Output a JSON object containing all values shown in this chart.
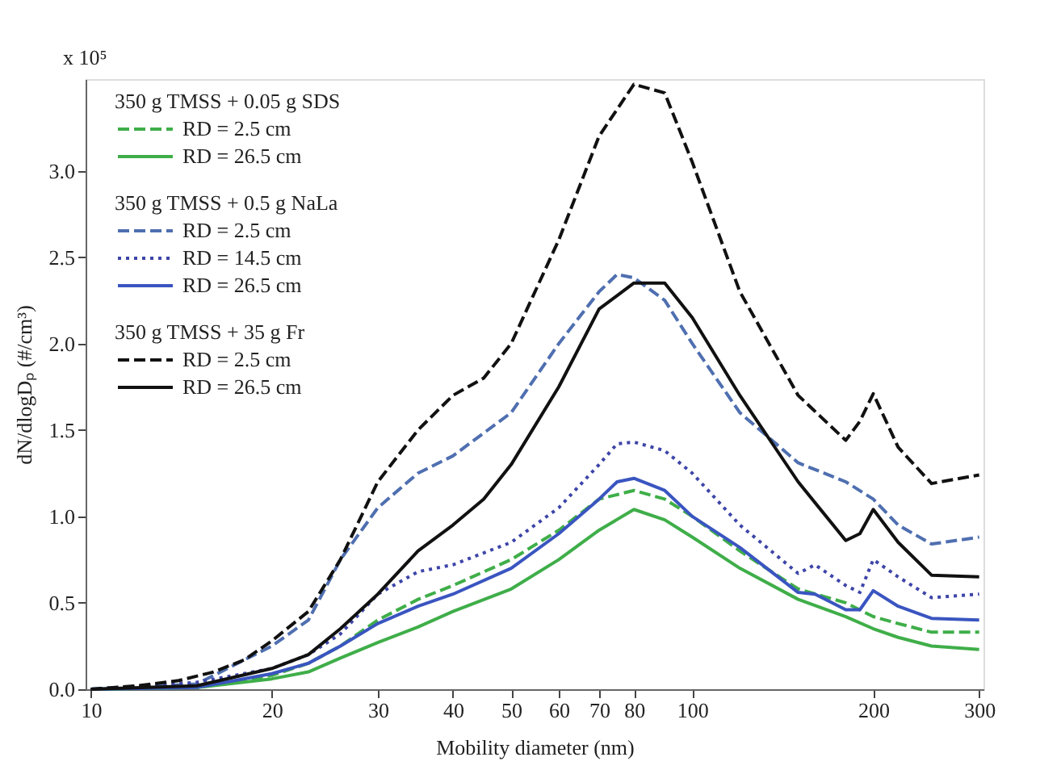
{
  "chart_data": {
    "type": "line",
    "xlabel": "Mobility diameter (nm)",
    "ylabel": "dN/dlogDₚ (#/cm³)",
    "annotations": [
      "x 10⁵",
      "350 g TMSS + 0.05 g SDS",
      "350 g TMSS + 0.5 g NaLa",
      "350 g TMSS + 35 g Fr"
    ],
    "log": "x",
    "grid": false,
    "legend": "top left",
    "marker": "none",
    "xlim": [
      9.8,
      305
    ],
    "ylim": [
      0,
      3.53
    ],
    "xticks": [
      10,
      20,
      30,
      40,
      50,
      60,
      70,
      80,
      100,
      200,
      300
    ],
    "yticks": [
      {
        "value": 0,
        "label": "0.0"
      },
      {
        "value": 0.5,
        "label": "0.5"
      },
      {
        "value": 1,
        "label": "1.0"
      },
      {
        "value": 1.5,
        "label": "1.5"
      },
      {
        "value": 2,
        "label": "2.0"
      },
      {
        "value": 2.5,
        "label": "2.5"
      },
      {
        "value": 3,
        "label": "3.0"
      }
    ],
    "series": [
      {
        "name": "RD = 2.5 cm",
        "color": "#3fae49",
        "line_style": "dashed",
        "x": [
          10,
          15,
          20,
          23,
          26,
          30,
          35,
          40,
          50,
          60,
          70,
          80,
          90,
          100,
          120,
          150,
          180,
          200,
          220,
          250,
          300
        ],
        "values": [
          0,
          0.01,
          0.08,
          0.15,
          0.25,
          0.4,
          0.52,
          0.6,
          0.75,
          0.92,
          1.1,
          1.15,
          1.1,
          1.0,
          0.8,
          0.58,
          0.5,
          0.42,
          0.38,
          0.33,
          0.33
        ]
      },
      {
        "name": "RD = 26.5 cm",
        "color": "#3fae49",
        "line_style": "solid",
        "x": [
          10,
          15,
          20,
          23,
          26,
          30,
          35,
          40,
          50,
          60,
          70,
          80,
          90,
          100,
          120,
          150,
          180,
          200,
          220,
          250,
          300
        ],
        "values": [
          0,
          0.01,
          0.06,
          0.1,
          0.18,
          0.27,
          0.36,
          0.45,
          0.58,
          0.75,
          0.92,
          1.04,
          0.98,
          0.88,
          0.7,
          0.52,
          0.42,
          0.35,
          0.3,
          0.25,
          0.23
        ]
      },
      {
        "name": "RD = 2.5 cm",
        "color": "#4f6fb0",
        "line_style": "dashed",
        "x": [
          10,
          15,
          20,
          23,
          26,
          30,
          35,
          40,
          50,
          60,
          70,
          75,
          80,
          90,
          100,
          120,
          150,
          180,
          200,
          220,
          250,
          300
        ],
        "values": [
          0,
          0.03,
          0.25,
          0.4,
          0.75,
          1.05,
          1.25,
          1.35,
          1.6,
          2.0,
          2.3,
          2.4,
          2.38,
          2.25,
          2.0,
          1.6,
          1.31,
          1.2,
          1.1,
          0.95,
          0.84,
          0.88
        ]
      },
      {
        "name": "RD = 14.5 cm",
        "color": "#3d45a8",
        "line_style": "dotted",
        "x": [
          10,
          15,
          20,
          23,
          26,
          30,
          35,
          40,
          50,
          60,
          70,
          75,
          80,
          90,
          100,
          120,
          150,
          160,
          180,
          190,
          200,
          220,
          250,
          300
        ],
        "values": [
          0,
          0.04,
          0.12,
          0.2,
          0.32,
          0.55,
          0.68,
          0.72,
          0.85,
          1.05,
          1.3,
          1.42,
          1.43,
          1.38,
          1.25,
          0.95,
          0.67,
          0.72,
          0.6,
          0.56,
          0.75,
          0.65,
          0.53,
          0.55
        ]
      },
      {
        "name": "RD = 26.5 cm",
        "color": "#3a55c0",
        "line_style": "solid",
        "x": [
          10,
          15,
          20,
          23,
          26,
          30,
          35,
          40,
          50,
          60,
          70,
          75,
          80,
          90,
          100,
          120,
          150,
          160,
          180,
          190,
          200,
          220,
          250,
          300
        ],
        "values": [
          0,
          0.01,
          0.09,
          0.15,
          0.25,
          0.38,
          0.48,
          0.55,
          0.7,
          0.9,
          1.1,
          1.2,
          1.22,
          1.15,
          1.0,
          0.82,
          0.56,
          0.55,
          0.46,
          0.46,
          0.57,
          0.48,
          0.41,
          0.4
        ]
      },
      {
        "name": "RD = 2.5 cm",
        "color": "#111111",
        "line_style": "dashed",
        "x": [
          10,
          12,
          14,
          16,
          18,
          20,
          23,
          26,
          30,
          35,
          40,
          45,
          50,
          60,
          70,
          80,
          90,
          100,
          120,
          150,
          180,
          190,
          200,
          220,
          250,
          300
        ],
        "values": [
          0,
          0.02,
          0.05,
          0.1,
          0.17,
          0.28,
          0.45,
          0.75,
          1.2,
          1.5,
          1.7,
          1.8,
          2.0,
          2.6,
          3.2,
          3.5,
          3.45,
          3.05,
          2.3,
          1.7,
          1.44,
          1.55,
          1.71,
          1.4,
          1.19,
          1.24
        ]
      },
      {
        "name": "RD = 26.5 cm",
        "color": "#111111",
        "line_style": "solid",
        "x": [
          10,
          15,
          20,
          23,
          26,
          30,
          35,
          40,
          45,
          50,
          60,
          70,
          80,
          90,
          100,
          120,
          150,
          180,
          190,
          200,
          220,
          250,
          300
        ],
        "values": [
          0,
          0.02,
          0.12,
          0.2,
          0.35,
          0.55,
          0.8,
          0.95,
          1.1,
          1.3,
          1.75,
          2.2,
          2.35,
          2.35,
          2.15,
          1.7,
          1.2,
          0.86,
          0.9,
          1.04,
          0.85,
          0.66,
          0.65
        ]
      }
    ]
  }
}
